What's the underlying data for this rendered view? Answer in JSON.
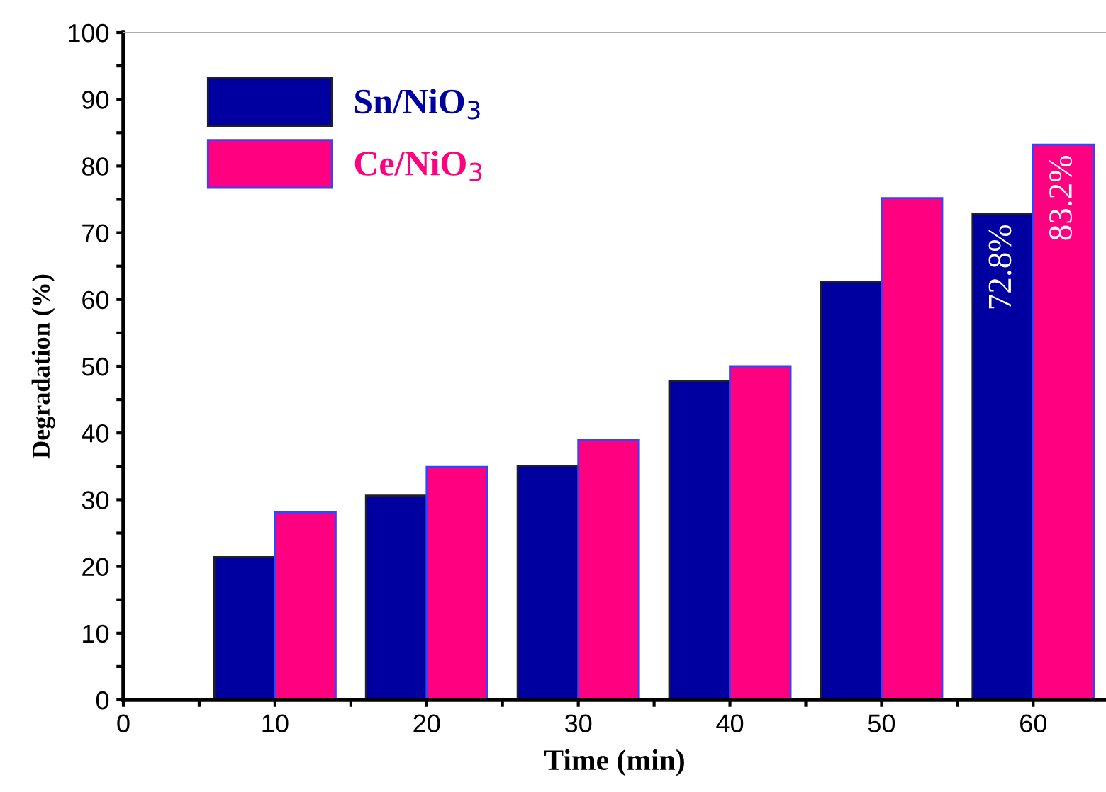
{
  "chart_data": {
    "type": "bar",
    "xlabel": "Time (min)",
    "ylabel": "Degradation (%)",
    "x": [
      10,
      20,
      30,
      40,
      50,
      60
    ],
    "series": [
      {
        "name": "Sn/NiO$_{3}$",
        "color": "#0000a0",
        "values": [
          21.4,
          30.6,
          35.1,
          47.8,
          62.7,
          72.8
        ],
        "value_labels": [
          null,
          null,
          null,
          null,
          null,
          "72.8%"
        ]
      },
      {
        "name": "Ce/NiO$_{3}$",
        "color": "#ff0080",
        "values": [
          28.1,
          34.9,
          39.0,
          50.0,
          75.2,
          83.2
        ],
        "value_labels": [
          null,
          null,
          null,
          null,
          null,
          "83.2%"
        ]
      }
    ],
    "xlim": [
      0,
      64.8
    ],
    "ylim": [
      0,
      100
    ],
    "xticks": [
      0,
      {
        "value": 5,
        "label": null
      },
      10,
      {
        "value": 15,
        "label": null
      },
      20,
      {
        "value": 25,
        "label": null
      },
      30,
      {
        "value": 35,
        "label": null
      },
      40,
      {
        "value": 45,
        "label": null
      },
      50,
      {
        "value": 55,
        "label": null
      },
      60
    ],
    "yticks": [
      0,
      {
        "value": 5,
        "label": null
      },
      10,
      {
        "value": 15,
        "label": null
      },
      20,
      {
        "value": 25,
        "label": null
      },
      30,
      {
        "value": 35,
        "label": null
      },
      40,
      {
        "value": 45,
        "label": null
      },
      50,
      {
        "value": 55,
        "label": null
      },
      60,
      {
        "value": 65,
        "label": null
      },
      70,
      {
        "value": 75,
        "label": null
      },
      80,
      {
        "value": 85,
        "label": null
      },
      90,
      {
        "value": 95,
        "label": null
      },
      100
    ],
    "grid": false,
    "legend": "top left"
  }
}
